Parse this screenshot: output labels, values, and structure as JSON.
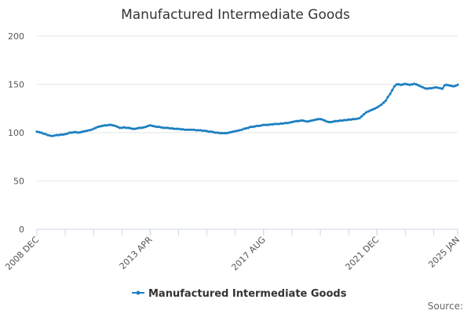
{
  "chart_data": {
    "type": "line",
    "title": "Manufactured Intermediate Goods",
    "source": "Source:",
    "categories": [
      "2008 DEC",
      null,
      null,
      null,
      null,
      null,
      null,
      null,
      null,
      null,
      null,
      null,
      null,
      null,
      null,
      null,
      null,
      null,
      null,
      null,
      null,
      null,
      null,
      null,
      null,
      null,
      null,
      null,
      null,
      null,
      null,
      null,
      null,
      null,
      null,
      null,
      null,
      null,
      null,
      null,
      null,
      null,
      null,
      null,
      null,
      null,
      null,
      null,
      null,
      null,
      null,
      null,
      "2013 APR",
      null,
      null,
      null,
      null,
      null,
      null,
      null,
      null,
      null,
      null,
      null,
      null,
      null,
      null,
      null,
      null,
      null,
      null,
      null,
      null,
      null,
      null,
      null,
      null,
      null,
      null,
      null,
      null,
      null,
      null,
      null,
      null,
      null,
      null,
      null,
      null,
      null,
      null,
      null,
      null,
      null,
      null,
      null,
      null,
      null,
      null,
      null,
      null,
      null,
      null,
      null,
      "2017 AUG",
      null,
      null,
      null,
      null,
      null,
      null,
      null,
      null,
      null,
      null,
      null,
      null,
      null,
      null,
      null,
      null,
      null,
      null,
      null,
      null,
      null,
      null,
      null,
      null,
      null,
      null,
      null,
      null,
      null,
      null,
      null,
      null,
      null,
      null,
      null,
      null,
      null,
      null,
      null,
      null,
      null,
      null,
      null,
      null,
      null,
      null,
      null,
      null,
      null,
      null,
      null,
      "2021 DEC",
      null,
      null,
      null,
      null,
      null,
      null,
      null,
      null,
      null,
      null,
      null,
      null,
      null,
      null,
      null,
      null,
      null,
      null,
      null,
      null,
      null,
      null,
      null,
      null,
      null,
      null,
      null,
      null,
      null,
      null,
      null,
      null,
      null,
      null,
      null,
      null,
      "2025 JAN"
    ],
    "series": [
      {
        "name": "Manufactured Intermediate Goods",
        "color": "#1b7fc1",
        "values": [
          101,
          100.5,
          100,
          99,
          98.5,
          97.5,
          97,
          96.5,
          97,
          97.5,
          97.5,
          98,
          98,
          98.5,
          99,
          100,
          100,
          100.5,
          100.5,
          100,
          100.5,
          101,
          101.5,
          102,
          102.5,
          103,
          104,
          105,
          106,
          106.5,
          107,
          107.5,
          107.5,
          108,
          108,
          107.5,
          107,
          106,
          105,
          105,
          105.5,
          105,
          105,
          104.5,
          104,
          104,
          104.5,
          105,
          105,
          105.5,
          106,
          107,
          107.5,
          107,
          106.5,
          106,
          106,
          105.5,
          105,
          105,
          105,
          104.5,
          104.5,
          104,
          104,
          104,
          103.5,
          103.5,
          103,
          103,
          103,
          103,
          103,
          102.5,
          102.5,
          102.5,
          102,
          102,
          101.5,
          101,
          101,
          100.5,
          100,
          100,
          99.5,
          99.5,
          99.5,
          99.5,
          100,
          100.5,
          101,
          101.5,
          102,
          102.5,
          103,
          104,
          104.5,
          105,
          106,
          106,
          106.5,
          107,
          107,
          107.5,
          108,
          108,
          108,
          108.5,
          108.5,
          109,
          109,
          109,
          109.5,
          109.5,
          110,
          110,
          110.5,
          111,
          111.5,
          112,
          112,
          112.5,
          112.5,
          112,
          111.5,
          112,
          112.5,
          113,
          113.5,
          114,
          114,
          113.5,
          112.5,
          111.5,
          111,
          111,
          111.5,
          112,
          112,
          112.5,
          112.5,
          113,
          113,
          113.5,
          113.5,
          114,
          114,
          114.5,
          115,
          117,
          119,
          121,
          122,
          123,
          124,
          125,
          126,
          127.5,
          129,
          131,
          133,
          137,
          140,
          144,
          148,
          150,
          150,
          149.5,
          150,
          150.5,
          150,
          149.5,
          150,
          150.5,
          150,
          149,
          148,
          147,
          146,
          145.5,
          146,
          146,
          146.5,
          147,
          146.5,
          146,
          145.5,
          149,
          149.5,
          149,
          148.5,
          148,
          148.5,
          149.5
        ]
      }
    ],
    "ylim": [
      0,
      200
    ],
    "yticks": [
      0,
      50,
      100,
      150,
      200
    ],
    "grid": true,
    "legend": "bottom"
  }
}
